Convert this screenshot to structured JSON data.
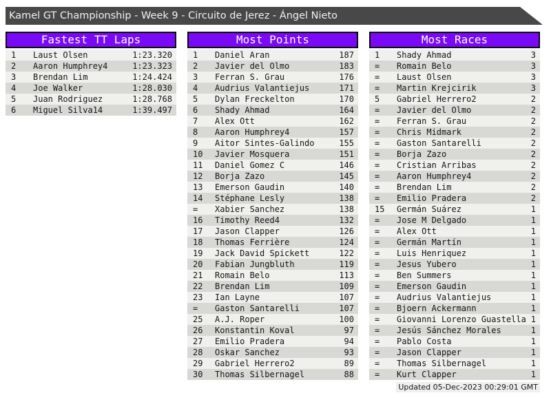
{
  "title_bar": {
    "text": "Kamel GT Championship - Week 9 - Circuito de Jerez - Ángel Nieto"
  },
  "tables": [
    {
      "title": "Fastest TT Laps",
      "rows": [
        [
          "1",
          "Laust Olsen",
          "1:23.320"
        ],
        [
          "2",
          "Aaron Humphrey4",
          "1:23.323"
        ],
        [
          "3",
          "Brendan Lim",
          "1:24.424"
        ],
        [
          "4",
          "Joe Walker",
          "1:28.030"
        ],
        [
          "5",
          "Juan Rodriguez",
          "1:28.768"
        ],
        [
          "6",
          "Miguel Silva14",
          "1:39.497"
        ]
      ]
    },
    {
      "title": "Most Points",
      "rows": [
        [
          "1",
          "Daniel Aran",
          "187"
        ],
        [
          "2",
          "Javier del Olmo",
          "183"
        ],
        [
          "3",
          "Ferran S. Grau",
          "176"
        ],
        [
          "4",
          "Audrius Valantiejus",
          "171"
        ],
        [
          "5",
          "Dylan Freckelton",
          "170"
        ],
        [
          "6",
          "Shady Ahmad",
          "164"
        ],
        [
          "7",
          "Alex Ott",
          "162"
        ],
        [
          "8",
          "Aaron Humphrey4",
          "157"
        ],
        [
          "9",
          "Aitor Sintes-Galindo",
          "155"
        ],
        [
          "10",
          "Javier Mosquera",
          "151"
        ],
        [
          "11",
          "Daniel Gomez C",
          "146"
        ],
        [
          "12",
          "Borja Zazo",
          "145"
        ],
        [
          "13",
          "Emerson Gaudin",
          "140"
        ],
        [
          "14",
          "Stéphane Lesly",
          "138"
        ],
        [
          "=",
          "Xabier Sanchez",
          "138"
        ],
        [
          "16",
          "Timothy Reed4",
          "132"
        ],
        [
          "17",
          "Jason Clapper",
          "126"
        ],
        [
          "18",
          "Thomas Ferrière",
          "124"
        ],
        [
          "19",
          "Jack David Spickett",
          "122"
        ],
        [
          "20",
          "Fabian Jungbluth",
          "119"
        ],
        [
          "21",
          "Romain Belo",
          "113"
        ],
        [
          "22",
          "Brendan Lim",
          "109"
        ],
        [
          "23",
          "Ian Layne",
          "107"
        ],
        [
          "=",
          "Gaston Santarelli",
          "107"
        ],
        [
          "25",
          "A.J. Roper",
          "100"
        ],
        [
          "26",
          "Konstantin Koval",
          "97"
        ],
        [
          "27",
          "Emilio Pradera",
          "94"
        ],
        [
          "28",
          "Oskar Sanchez",
          "93"
        ],
        [
          "29",
          "Gabriel Herrero2",
          "89"
        ],
        [
          "30",
          "Thomas Silbernagel",
          "88"
        ]
      ]
    },
    {
      "title": "Most Races",
      "rows": [
        [
          "1",
          "Shady Ahmad",
          "3"
        ],
        [
          "=",
          "Romain Belo",
          "3"
        ],
        [
          "=",
          "Laust Olsen",
          "3"
        ],
        [
          "=",
          "Martin Krejcirik",
          "3"
        ],
        [
          "5",
          "Gabriel Herrero2",
          "2"
        ],
        [
          "=",
          "Javier del Olmo",
          "2"
        ],
        [
          "=",
          "Ferran S. Grau",
          "2"
        ],
        [
          "=",
          "Chris Midmark",
          "2"
        ],
        [
          "=",
          "Gaston Santarelli",
          "2"
        ],
        [
          "=",
          "Borja Zazo",
          "2"
        ],
        [
          "=",
          "Cristian Arribas",
          "2"
        ],
        [
          "=",
          "Aaron Humphrey4",
          "2"
        ],
        [
          "=",
          "Brendan Lim",
          "2"
        ],
        [
          "=",
          "Emilio Pradera",
          "2"
        ],
        [
          "15",
          "Germán Suárez",
          "1"
        ],
        [
          "=",
          "Jose M Delgado",
          "1"
        ],
        [
          "=",
          "Alex Ott",
          "1"
        ],
        [
          "=",
          "Germán Martín",
          "1"
        ],
        [
          "=",
          "Luis Henriquez",
          "1"
        ],
        [
          "=",
          "Jesus Yubero",
          "1"
        ],
        [
          "=",
          "Ben Summers",
          "1"
        ],
        [
          "=",
          "Emerson Gaudin",
          "1"
        ],
        [
          "=",
          "Audrius Valantiejus",
          "1"
        ],
        [
          "=",
          "Bjoern Ackermann",
          "1"
        ],
        [
          "=",
          "Giovanni Lorenzo Guastella",
          "1"
        ],
        [
          "=",
          "Jesús Sánchez Morales",
          "1"
        ],
        [
          "=",
          "Pablo Costa",
          "1"
        ],
        [
          "=",
          "Jason Clapper",
          "1"
        ],
        [
          "=",
          "Thomas Silbernagel",
          "1"
        ],
        [
          "=",
          "Kurt Clapper",
          "1"
        ]
      ]
    }
  ],
  "footer": {
    "updated": "Updated 05-Dec-2023 00:29:01 GMT"
  },
  "colors": {
    "accent_purple": "#7a0af5",
    "title_bar_bg": "#484848",
    "row_light": "#f0f0ee",
    "row_dark": "#d8d8d5"
  }
}
